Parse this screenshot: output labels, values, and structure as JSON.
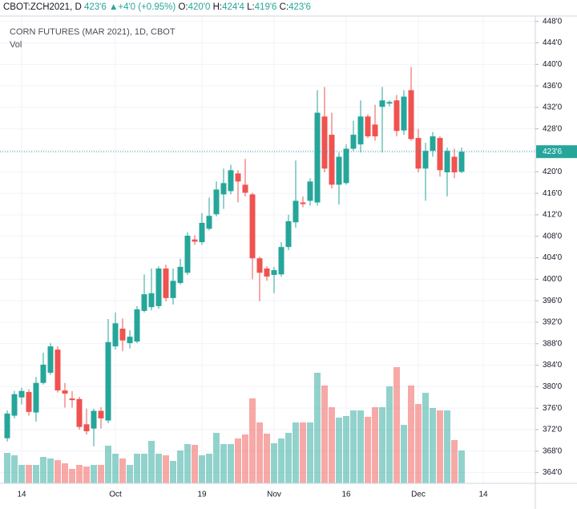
{
  "header": {
    "symbol": "CBOT:ZCH2021, D",
    "price": "423'6",
    "arrow": "▲",
    "change": "+4'0 (+0.95%)",
    "o_label": "O:",
    "o": "420'0",
    "h_label": "H:",
    "h": "424'4",
    "l_label": "L:",
    "l": "419'6",
    "c_label": "C:",
    "c": "423'6"
  },
  "chart_data": {
    "type": "candlestick",
    "title": "CORN FUTURES (MAR 2021), 1D, CBOT",
    "volume_label": "Vol",
    "up_color": "#26a69a",
    "down_color": "#ef5350",
    "grid": true,
    "categories": [
      null,
      null,
      "14",
      null,
      null,
      null,
      null,
      null,
      null,
      null,
      null,
      null,
      null,
      null,
      null,
      "Oct",
      null,
      null,
      null,
      null,
      null,
      null,
      null,
      null,
      null,
      null,
      null,
      "19",
      null,
      null,
      null,
      null,
      null,
      null,
      null,
      null,
      null,
      "Nov",
      null,
      null,
      null,
      null,
      null,
      null,
      null,
      null,
      null,
      "16",
      null,
      null,
      null,
      null,
      null,
      null,
      null,
      null,
      null,
      "Dec",
      null,
      null,
      null,
      null,
      null,
      null,
      null,
      null,
      "14"
    ],
    "open": [
      370.4,
      374.6,
      378.0,
      379.0,
      375.2,
      380.7,
      382.6,
      386.9,
      379.3,
      377.8,
      377.7,
      373.0,
      372.2,
      375.5,
      373.7,
      387.5,
      390.8,
      388.1,
      388.4,
      394.1,
      394.8,
      395.0,
      402.0,
      396.5,
      399.3,
      401.2,
      407.4,
      406.9,
      409.4,
      412.1,
      415.8,
      416.4,
      419.7,
      417.6,
      415.8,
      403.9,
      402.0,
      400.8,
      400.9,
      406.0,
      410.6,
      414.3,
      414.6,
      414.3,
      430.3,
      426.9,
      417.6,
      417.9,
      424.3,
      425.1,
      430.3,
      428.8,
      432.1,
      432.7,
      433.3,
      427.7,
      435.2,
      426.3,
      420.6,
      423.9,
      426.3,
      419.9,
      422.8,
      420,
      null,
      null,
      null
    ],
    "high": [
      375.6,
      379.2,
      379.8,
      379.5,
      381.8,
      386.3,
      388.1,
      387.5,
      380.7,
      379.2,
      378.1,
      375.9,
      375.9,
      376.2,
      392.6,
      393.8,
      392.7,
      390.5,
      395.0,
      400.9,
      402.0,
      402.4,
      402.7,
      402.0,
      403.8,
      408.7,
      408.2,
      412.3,
      415.2,
      418.2,
      420.6,
      421.3,
      420.3,
      422.4,
      416.1,
      404.2,
      402.4,
      402.3,
      406.9,
      412.0,
      422.1,
      415.4,
      418.8,
      435.2,
      435.8,
      431.0,
      423.6,
      425.1,
      429.5,
      433.3,
      430.7,
      432.5,
      435.8,
      433.3,
      434.3,
      435.2,
      439.5,
      428.0,
      425.4,
      427.4,
      426.6,
      424.5,
      424.3,
      424.5,
      null,
      null,
      null
    ],
    "low": [
      369.8,
      374.1,
      376.7,
      374.6,
      373.5,
      380.4,
      382.2,
      378.9,
      376.1,
      376.1,
      372.0,
      371.1,
      368.9,
      372.2,
      373.2,
      386.9,
      386.6,
      387.1,
      388.1,
      393.8,
      394.2,
      394.5,
      395.9,
      395.3,
      399.0,
      400.8,
      406.4,
      406.4,
      409.1,
      411.7,
      413.1,
      415.8,
      414.3,
      415.4,
      400.0,
      395.9,
      399.7,
      397.4,
      400.5,
      405.4,
      409.6,
      413.4,
      413.7,
      413.7,
      419.9,
      416.9,
      413.9,
      417.6,
      423.9,
      423.6,
      426.3,
      425.8,
      423.6,
      432.2,
      426.6,
      426.9,
      425.8,
      419.9,
      414.6,
      422.8,
      419.1,
      415.4,
      418.8,
      419.75,
      null,
      null,
      null
    ],
    "close": [
      375.0,
      378.6,
      379.2,
      375.3,
      380.7,
      384.1,
      387.5,
      379.3,
      378.7,
      377.5,
      372.5,
      371.7,
      375.5,
      374.1,
      388.3,
      391.8,
      388.6,
      389.3,
      394.4,
      397.2,
      397.4,
      402.0,
      396.5,
      399.7,
      402.3,
      408.1,
      407.0,
      410.5,
      411.8,
      416.7,
      417.9,
      420.3,
      418.2,
      416.1,
      403.9,
      401.2,
      400.5,
      401.7,
      406.0,
      410.8,
      414.6,
      414.0,
      418.2,
      431.0,
      420.6,
      417.6,
      422.8,
      424.3,
      426.9,
      430.3,
      426.6,
      426.6,
      433.3,
      433.0,
      427.6,
      434.0,
      426.1,
      420.6,
      423.9,
      426.6,
      420.3,
      423.9,
      419.9,
      423.75,
      null,
      null,
      null
    ],
    "volume": [
      38000,
      35000,
      23000,
      23000,
      23000,
      33000,
      31000,
      29000,
      25000,
      18000,
      23000,
      21000,
      23000,
      23000,
      47000,
      37000,
      31000,
      23000,
      37000,
      37000,
      53000,
      37000,
      35000,
      28000,
      41000,
      49000,
      48000,
      35000,
      37000,
      63000,
      49000,
      49000,
      56000,
      61000,
      106000,
      76000,
      62000,
      50000,
      56000,
      63000,
      76000,
      76000,
      76000,
      138000,
      122000,
      95000,
      82000,
      84000,
      91000,
      91000,
      83000,
      95000,
      95000,
      121000,
      145000,
      73000,
      122000,
      99000,
      113000,
      94000,
      91000,
      91000,
      54000,
      41000,
      null,
      null,
      null
    ],
    "last_price": {
      "value": 423.75,
      "label": "423'6"
    },
    "ylim": [
      362,
      449
    ],
    "yticks": [
      {
        "value": 364,
        "label": "364'0"
      },
      {
        "value": 368,
        "label": "368'0"
      },
      {
        "value": 372,
        "label": "372'0"
      },
      {
        "value": 376,
        "label": "376'0"
      },
      {
        "value": 380,
        "label": "380'0"
      },
      {
        "value": 384,
        "label": "384'0"
      },
      {
        "value": 388,
        "label": "388'0"
      },
      {
        "value": 392,
        "label": "392'0"
      },
      {
        "value": 396,
        "label": "396'0"
      },
      {
        "value": 400,
        "label": "400'0"
      },
      {
        "value": 404,
        "label": "404'0"
      },
      {
        "value": 408,
        "label": "408'0"
      },
      {
        "value": 412,
        "label": "412'0"
      },
      {
        "value": 416,
        "label": "416'0"
      },
      {
        "value": 420,
        "label": "420'0"
      },
      {
        "value": 424,
        "label": "424'0"
      },
      {
        "value": 428,
        "label": "428'0"
      },
      {
        "value": 432,
        "label": "432'0"
      },
      {
        "value": 436,
        "label": "436'0"
      },
      {
        "value": 440,
        "label": "440'0"
      },
      {
        "value": 444,
        "label": "444'0"
      },
      {
        "value": 448,
        "label": "448'0"
      }
    ]
  }
}
